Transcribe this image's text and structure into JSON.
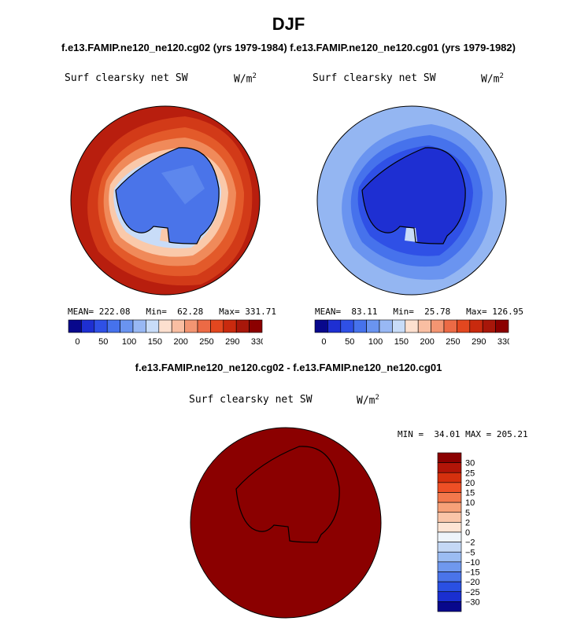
{
  "figure": {
    "title": "DJF",
    "subtitle": "f.e13.FAMIP.ne120_ne120.cg02 (yrs 1979-1984) f.e13.FAMIP.ne120_ne120.cg01 (yrs 1979-1982)"
  },
  "panels": [
    {
      "variable": "Surf clearsky net SW",
      "units": "W/m",
      "units_exp": "2",
      "mean_label": "MEAN=",
      "mean": "222.08",
      "min_label": "Min=",
      "min": "62.28",
      "max_label": "Max=",
      "max": "331.71"
    },
    {
      "variable": "Surf clearsky net SW",
      "units": "W/m",
      "units_exp": "2",
      "mean_label": "MEAN=",
      "mean": "83.11",
      "min_label": "Min=",
      "min": "25.78",
      "max_label": "Max=",
      "max": "126.95"
    }
  ],
  "colorbar_top": {
    "colors": [
      "#08088c",
      "#1e2fd2",
      "#2f50e6",
      "#4672ec",
      "#6a94f0",
      "#98b8f4",
      "#c8dcf8",
      "#fde0cf",
      "#f9bea2",
      "#f39572",
      "#ec6a45",
      "#e3471f",
      "#c92a0e",
      "#a8170a",
      "#8b0000"
    ],
    "tick_labels": [
      "0",
      "50",
      "100",
      "150",
      "200",
      "250",
      "290",
      "330"
    ]
  },
  "difference": {
    "title": "f.e13.FAMIP.ne120_ne120.cg02 - f.e13.FAMIP.ne120_ne120.cg01",
    "variable": "Surf clearsky net SW",
    "units": "W/m",
    "units_exp": "2",
    "min_label": "MIN =",
    "min": "34.01",
    "max_label": "MAX =",
    "max": "205.21",
    "colorbar": {
      "colors": [
        "#8b0000",
        "#b21508",
        "#d5300e",
        "#ee4f25",
        "#f3784c",
        "#f7a178",
        "#fac5a8",
        "#fde4d4",
        "#eef4fb",
        "#c4d8f5",
        "#9bbcf2",
        "#6f98ee",
        "#4a74e9",
        "#2a50e3",
        "#1a2fd0",
        "#08088c"
      ],
      "tick_labels": [
        "30",
        "25",
        "20",
        "15",
        "10",
        "5",
        "2",
        "0",
        "−2",
        "−5",
        "−10",
        "−15",
        "−20",
        "−25",
        "−30"
      ]
    }
  },
  "map_colors": {
    "ocean_red": "#b81e0e",
    "ocean_blue": "#94b6f2",
    "diff_fill": "#8b0000"
  }
}
